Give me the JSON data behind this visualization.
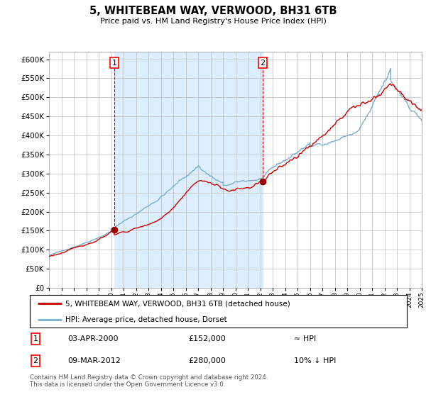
{
  "title": "5, WHITEBEAM WAY, VERWOOD, BH31 6TB",
  "subtitle": "Price paid vs. HM Land Registry's House Price Index (HPI)",
  "legend_label_red": "5, WHITEBEAM WAY, VERWOOD, BH31 6TB (detached house)",
  "legend_label_blue": "HPI: Average price, detached house, Dorset",
  "annotation1_date": "03-APR-2000",
  "annotation1_price": "£152,000",
  "annotation1_hpi": "≈ HPI",
  "annotation2_date": "09-MAR-2012",
  "annotation2_price": "£280,000",
  "annotation2_hpi": "10% ↓ HPI",
  "footer": "Contains HM Land Registry data © Crown copyright and database right 2024.\nThis data is licensed under the Open Government Licence v3.0.",
  "ylim": [
    0,
    620000
  ],
  "yticks": [
    0,
    50000,
    100000,
    150000,
    200000,
    250000,
    300000,
    350000,
    400000,
    450000,
    500000,
    550000,
    600000
  ],
  "red_color": "#cc0000",
  "blue_color": "#7aadcc",
  "shade_color": "#ddeeff",
  "marker_color": "#990000",
  "sale1_x": 2000.25,
  "sale1_y": 152000,
  "sale2_x": 2012.2,
  "sale2_y": 280000,
  "xmin": 1995,
  "xmax": 2025
}
